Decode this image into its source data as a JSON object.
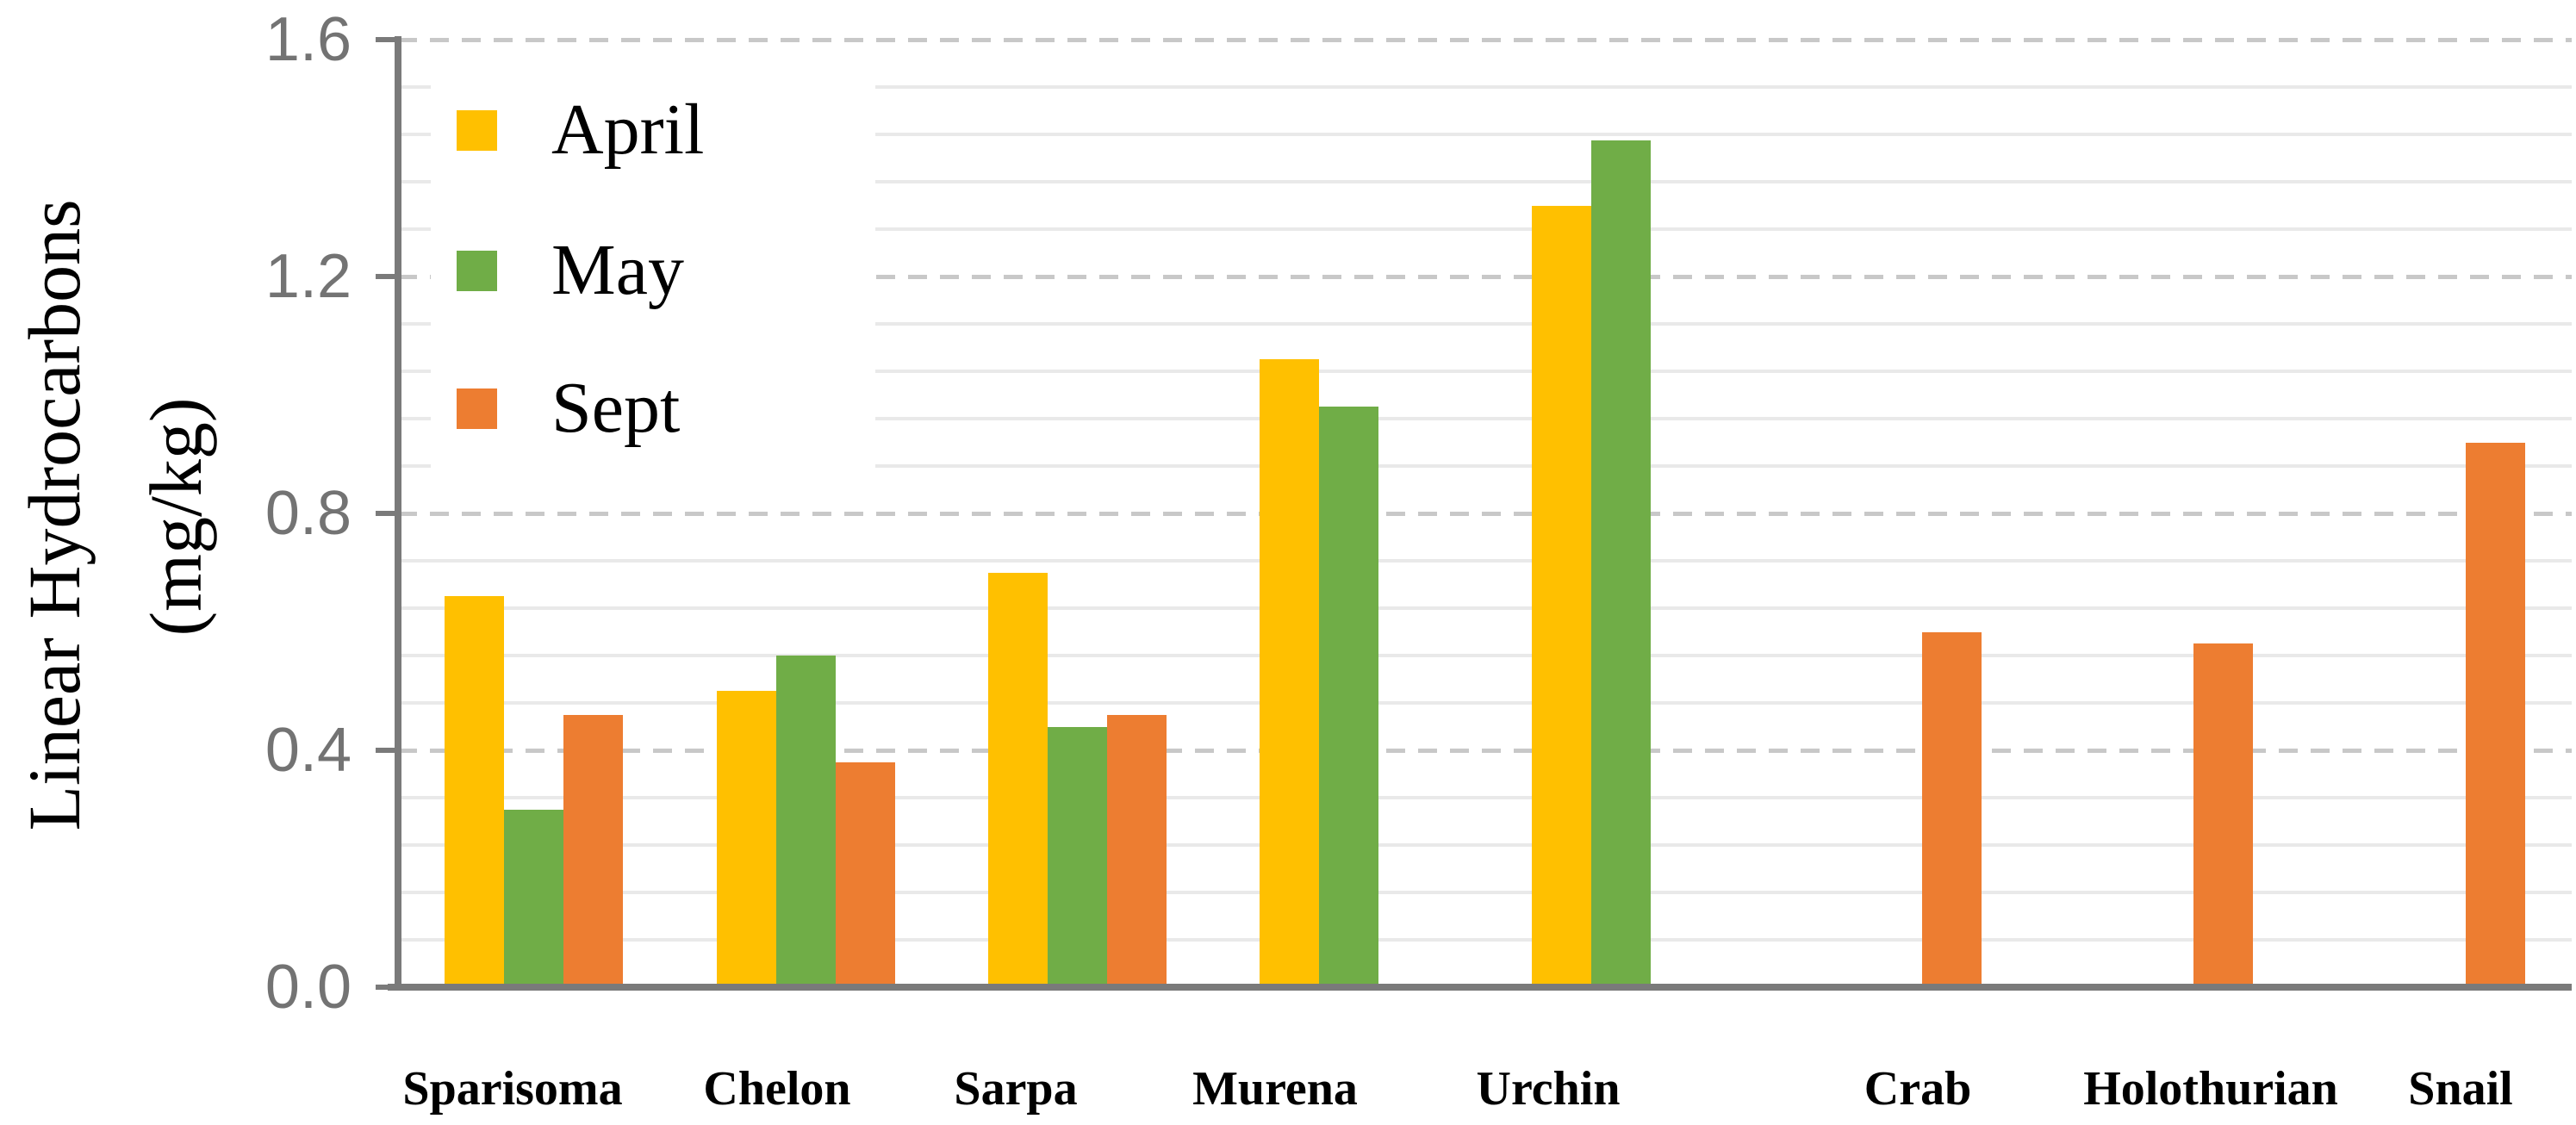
{
  "y_axis_title": {
    "line1": "Linear Hydrocarbons",
    "line2": "(mg/kg)"
  },
  "y_axis": {
    "tick_labels": [
      "0.0",
      "0.4",
      "0.8",
      "1.2",
      "1.6"
    ]
  },
  "legend": {
    "items": [
      {
        "label": "April",
        "color": "#FFC000"
      },
      {
        "label": "May",
        "color": "#70AD47"
      },
      {
        "label": "Sept",
        "color": "#ED7D31"
      }
    ]
  },
  "chart_data": {
    "type": "bar",
    "title": "",
    "xlabel": "",
    "ylabel": "Linear Hydrocarbons (mg/kg)",
    "categories": [
      "Sparisoma",
      "Chelon",
      "Sarpa",
      "Murena",
      "Urchin",
      "Crab",
      "Holothurian",
      "Snail"
    ],
    "series": [
      {
        "name": "April",
        "color": "#FFC000",
        "values": [
          0.66,
          0.5,
          0.7,
          1.06,
          1.32,
          null,
          null,
          null
        ]
      },
      {
        "name": "May",
        "color": "#70AD47",
        "values": [
          0.3,
          0.56,
          0.44,
          0.98,
          1.43,
          null,
          null,
          null
        ]
      },
      {
        "name": "Sept",
        "color": "#ED7D31",
        "values": [
          0.46,
          0.38,
          0.46,
          null,
          null,
          0.6,
          0.58,
          0.92
        ]
      }
    ],
    "ylim": [
      0,
      1.6
    ],
    "y_major_tick": 0.4,
    "y_minor_tick": 0.08,
    "grid": {
      "major": "dashed",
      "minor": "solid"
    },
    "legend_position": "upper-left-inside"
  },
  "style": {
    "background": "#ffffff",
    "axis_color": "#7a7a7a",
    "tick_label_color": "#737373",
    "major_grid_color": "#c8c8c8",
    "minor_grid_color": "#e9e9e9",
    "text_color": "#000000"
  }
}
